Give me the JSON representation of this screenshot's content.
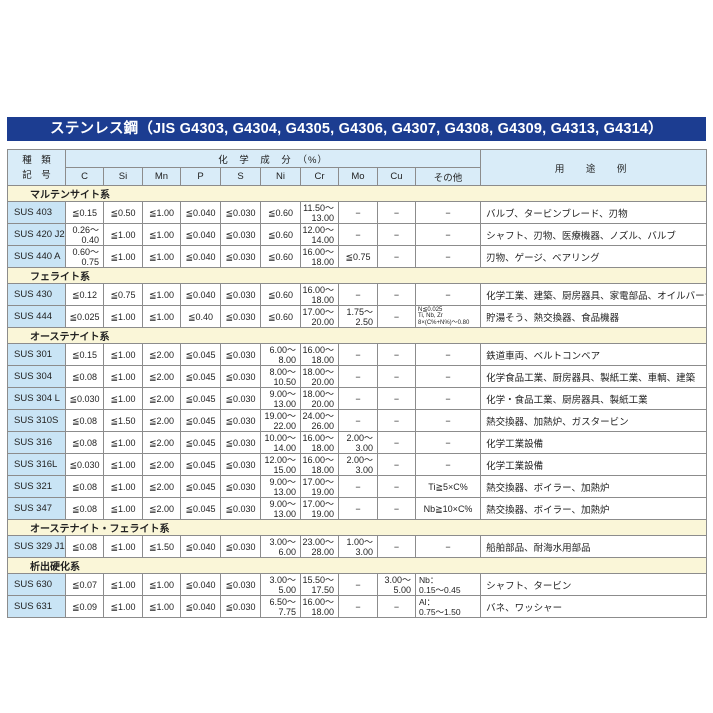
{
  "title": "ステンレス鋼（JIS G4303, G4304, G4305, G4306, G4307, G4308, G4309, G4313, G4314）",
  "colors": {
    "title_bar_bg": "#1c3d91",
    "title_bar_text": "#ffffff",
    "header_bg": "#d9ecf8",
    "section_bg": "#faf6d8",
    "code_cell_bg": "#c9e4f5",
    "border": "#8c8c8c"
  },
  "table": {
    "header": {
      "kind_line1": "種　類",
      "kind_line2": "記　号",
      "composition": "化　学　成　分　（%）",
      "usage": "用　途　例",
      "elements": [
        "C",
        "Si",
        "Mn",
        "P",
        "S",
        "Ni",
        "Cr",
        "Mo",
        "Cu",
        "その他"
      ]
    },
    "sections": [
      {
        "name": "マルテンサイト系",
        "rows": [
          {
            "code": "SUS 403",
            "values": [
              "≦0.15",
              "≦0.50",
              "≦1.00",
              "≦0.040",
              "≦0.030",
              "≦0.60",
              "11.50～\n13.00",
              "−",
              "−",
              "−"
            ],
            "usage": "バルブ、タービンブレード、刃物"
          },
          {
            "code": "SUS 420 J2",
            "values": [
              "0.26～\n0.40",
              "≦1.00",
              "≦1.00",
              "≦0.040",
              "≦0.030",
              "≦0.60",
              "12.00～\n14.00",
              "−",
              "−",
              "−"
            ],
            "usage": "シャフト、刃物、医療機器、ノズル、バルブ"
          },
          {
            "code": "SUS 440 A",
            "values": [
              "0.60～\n0.75",
              "≦1.00",
              "≦1.00",
              "≦0.040",
              "≦0.030",
              "≦0.60",
              "16.00～\n18.00",
              "≦0.75",
              "−",
              "−"
            ],
            "usage": "刃物、ゲージ、ベアリング"
          }
        ]
      },
      {
        "name": "フェライト系",
        "rows": [
          {
            "code": "SUS 430",
            "values": [
              "≦0.12",
              "≦0.75",
              "≦1.00",
              "≦0.040",
              "≦0.030",
              "≦0.60",
              "16.00～\n18.00",
              "−",
              "−",
              "−"
            ],
            "usage": "化学工業、建築、厨房器具、家電部品、オイルバーナー部品"
          },
          {
            "code": "SUS 444",
            "values": [
              "≦0.025",
              "≦1.00",
              "≦1.00",
              "≦0.40",
              "≦0.030",
              "≦0.60",
              "17.00～\n20.00",
              "1.75～\n2.50",
              "−",
              "N≦0.025\nTi, Nb, Zr\n8×(C%+N%)～0.80"
            ],
            "usage": "貯湯そう、熱交換器、食品機器"
          }
        ]
      },
      {
        "name": "オーステナイト系",
        "rows": [
          {
            "code": "SUS 301",
            "values": [
              "≦0.15",
              "≦1.00",
              "≦2.00",
              "≦0.045",
              "≦0.030",
              "6.00～\n8.00",
              "16.00～\n18.00",
              "−",
              "−",
              "−"
            ],
            "usage": "鉄道車両、ベルトコンベア"
          },
          {
            "code": "SUS 304",
            "values": [
              "≦0.08",
              "≦1.00",
              "≦2.00",
              "≦0.045",
              "≦0.030",
              "8.00～\n10.50",
              "18.00～\n20.00",
              "−",
              "−",
              "−"
            ],
            "usage": "化学食品工業、厨房器具、製紙工業、車輌、建築"
          },
          {
            "code": "SUS 304 L",
            "values": [
              "≦0.030",
              "≦1.00",
              "≦2.00",
              "≦0.045",
              "≦0.030",
              "9.00～\n13.00",
              "18.00～\n20.00",
              "−",
              "−",
              "−"
            ],
            "usage": "化学・食品工業、厨房器具、製紙工業"
          },
          {
            "code": "SUS 310S",
            "values": [
              "≦0.08",
              "≦1.50",
              "≦2.00",
              "≦0.045",
              "≦0.030",
              "19.00～\n22.00",
              "24.00～\n26.00",
              "−",
              "−",
              "−"
            ],
            "usage": "熱交換器、加熱炉、ガスタービン"
          },
          {
            "code": "SUS 316",
            "values": [
              "≦0.08",
              "≦1.00",
              "≦2.00",
              "≦0.045",
              "≦0.030",
              "10.00～\n14.00",
              "16.00～\n18.00",
              "2.00～\n3.00",
              "−",
              "−"
            ],
            "usage": "化学工業設備"
          },
          {
            "code": "SUS 316L",
            "values": [
              "≦0.030",
              "≦1.00",
              "≦2.00",
              "≦0.045",
              "≦0.030",
              "12.00～\n15.00",
              "16.00～\n18.00",
              "2.00～\n3.00",
              "−",
              "−"
            ],
            "usage": "化学工業設備"
          },
          {
            "code": "SUS 321",
            "values": [
              "≦0.08",
              "≦1.00",
              "≦2.00",
              "≦0.045",
              "≦0.030",
              "9.00～\n13.00",
              "17.00～\n19.00",
              "−",
              "−",
              "Ti≧5×C%"
            ],
            "usage": "熱交換器、ボイラー、加熱炉"
          },
          {
            "code": "SUS 347",
            "values": [
              "≦0.08",
              "≦1.00",
              "≦2.00",
              "≦0.045",
              "≦0.030",
              "9.00～\n13.00",
              "17.00～\n19.00",
              "−",
              "−",
              "Nb≧10×C%"
            ],
            "usage": "熱交換器、ボイラー、加熱炉"
          }
        ]
      },
      {
        "name": "オーステナイト・フェライト系",
        "rows": [
          {
            "code": "SUS 329 J1",
            "values": [
              "≦0.08",
              "≦1.00",
              "≦1.50",
              "≦0.040",
              "≦0.030",
              "3.00～\n6.00",
              "23.00～\n28.00",
              "1.00～\n3.00",
              "−",
              "−"
            ],
            "usage": "船舶部品、耐海水用部品"
          }
        ]
      },
      {
        "name": "析出硬化系",
        "rows": [
          {
            "code": "SUS 630",
            "values": [
              "≦0.07",
              "≦1.00",
              "≦1.00",
              "≦0.040",
              "≦0.030",
              "3.00～\n5.00",
              "15.50～\n17.50",
              "−",
              "3.00～\n5.00",
              "Nb：\n0.15～0.45"
            ],
            "usage": "シャフト、タービン"
          },
          {
            "code": "SUS 631",
            "values": [
              "≦0.09",
              "≦1.00",
              "≦1.00",
              "≦0.040",
              "≦0.030",
              "6.50～\n7.75",
              "16.00～\n18.00",
              "−",
              "−",
              "Al：\n0.75～1.50"
            ],
            "usage": "バネ、ワッシャー"
          }
        ]
      }
    ]
  }
}
